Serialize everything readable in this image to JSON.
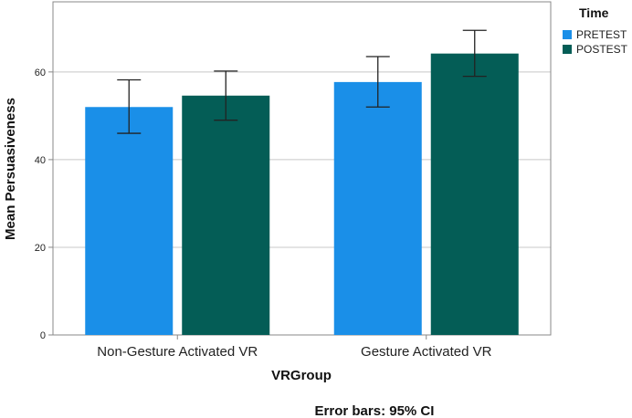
{
  "chart_data": {
    "type": "bar",
    "categories": [
      "Non-Gesture Activated VR",
      "Gesture Activated VR"
    ],
    "series": [
      {
        "name": "PRETEST",
        "color": "#1a8fe8",
        "values": [
          52,
          57.7
        ],
        "ci_low": [
          46,
          52
        ],
        "ci_high": [
          58.2,
          63.5
        ]
      },
      {
        "name": "POSTEST",
        "color": "#045d56",
        "values": [
          54.6,
          64.2
        ],
        "ci_low": [
          49,
          59
        ],
        "ci_high": [
          60.2,
          69.5
        ]
      }
    ],
    "xlabel": "VRGroup",
    "ylabel": "Mean Persuasiveness",
    "ylim": [
      0,
      76
    ],
    "yticks": [
      0,
      20,
      40,
      60
    ],
    "grid": true,
    "legend_title": "Time",
    "legend_position": "top-right",
    "footnote": "Error bars: 95% CI"
  }
}
